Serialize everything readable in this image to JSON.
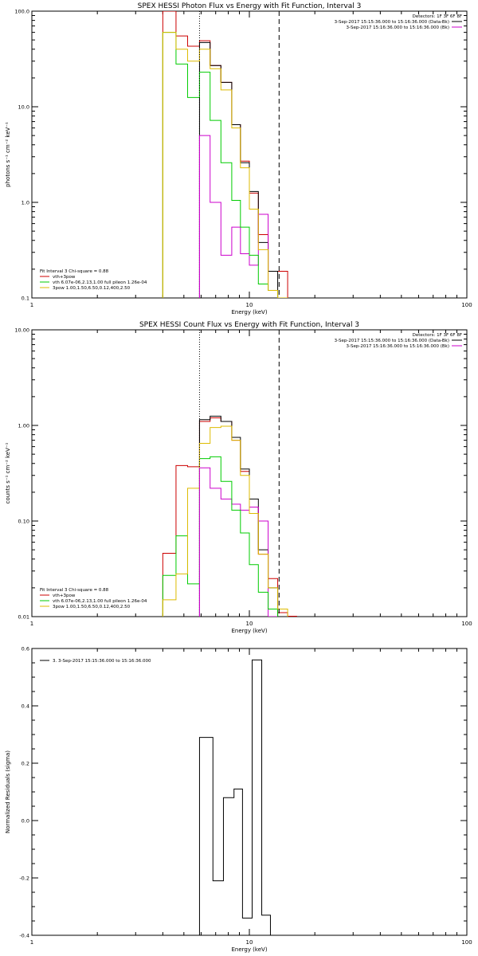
{
  "chart_data": [
    {
      "type": "line",
      "title": "SPEX HESSI Photon Flux vs Energy with Fit Function, Interval 3",
      "xlabel": "Energy (keV)",
      "ylabel": "photons s⁻¹ cm⁻² keV⁻¹",
      "x_scale": "log",
      "y_scale": "log",
      "xlim": [
        1,
        100
      ],
      "ylim": [
        0.1,
        100
      ],
      "x_ticks": [
        {
          "v": 1,
          "label": "1"
        },
        {
          "v": 10,
          "label": "10"
        },
        {
          "v": 100,
          "label": "100"
        }
      ],
      "y_ticks": [
        {
          "v": 0.1,
          "label": "0.1"
        },
        {
          "v": 1,
          "label": "1.0"
        },
        {
          "v": 10,
          "label": "10.0"
        },
        {
          "v": 100,
          "label": "100.0"
        }
      ],
      "vlines": [
        {
          "x": 5.9,
          "style": "dotted",
          "color": "#000000"
        },
        {
          "x": 13.7,
          "style": "dashed",
          "color": "#000000"
        }
      ],
      "legend_top": [
        "Detectors: 1F 3F 6F 8F",
        "3-Sep-2017 15:15:36.000 to 15:16:36.000 (Data-Bk)",
        "3-Sep-2017 15:16:36.000 to 15:16:36.000 (Bk)"
      ],
      "legend_top_colors": [
        "",
        "#000000",
        "#cc00cc"
      ],
      "legend_bottom_header": "Fit Interval 3   Chi-square = 0.88",
      "legend_bottom": [
        {
          "label": "vth+3pow",
          "color": "#cc0000"
        },
        {
          "label": "vth 6.07e-06,2.13,1.00  full pileon 1.26e-04",
          "color": "#00cc00"
        },
        {
          "label": "3pow 1.00,1.50,6.50,0.12,400,2.50",
          "color": "#ddbb00"
        }
      ],
      "edges": [
        4.0,
        4.5,
        5.0,
        5.5,
        6.0,
        6.5,
        7.0,
        7.5,
        8.0,
        8.5,
        9.0,
        9.5,
        10.0,
        10.5,
        11.0,
        11.5,
        12.0,
        12.5,
        13.0,
        13.5,
        14.0,
        14.5,
        15.0
      ],
      "series": [
        {
          "name": "Data-Bk",
          "color": "#000000",
          "values": [
            null,
            null,
            null,
            null,
            null,
            null,
            null,
            null,
            null,
            null,
            null,
            null,
            null,
            null,
            null,
            null,
            null,
            null,
            null,
            null,
            null,
            null
          ]
        },
        {
          "name": "Bk",
          "color": "#cc00cc",
          "values": [
            null,
            null,
            null,
            null,
            null,
            null,
            null,
            null,
            null,
            null,
            null,
            null,
            null,
            null,
            null,
            null,
            null,
            null,
            null,
            null,
            null,
            null
          ]
        },
        {
          "name": "vth+3pow",
          "color": "#cc0000",
          "values": [
            null,
            null,
            null,
            null,
            null,
            null,
            null,
            null,
            null,
            null,
            null,
            null,
            null,
            null,
            null,
            null,
            null,
            null,
            null,
            null,
            null,
            null
          ]
        },
        {
          "name": "vth",
          "color": "#00cc00",
          "values": [
            null,
            null,
            null,
            null,
            null,
            null,
            null,
            null,
            null,
            null,
            null,
            null,
            null,
            null,
            null,
            null,
            null,
            null,
            null,
            null,
            null,
            null
          ]
        },
        {
          "name": "3pow",
          "color": "#ddbb00",
          "values": [
            null,
            null,
            null,
            null,
            null,
            null,
            null,
            null,
            null,
            null,
            null,
            null,
            null,
            null,
            null,
            null,
            null,
            null,
            null,
            null,
            null,
            null
          ]
        }
      ],
      "steps": [
        {
          "color": "#cc0000",
          "edges": [
            4.0,
            4.6,
            5.2,
            5.9,
            6.6,
            7.4,
            8.3,
            9.1,
            10.0,
            11.0,
            12.2,
            13.5,
            15.0
          ],
          "values": [
            100,
            55,
            43,
            49,
            27,
            18,
            6.5,
            2.7,
            1.25,
            0.46,
            0.19,
            0.19
          ]
        },
        {
          "color": "#000000",
          "edges": [
            5.9,
            6.6,
            7.4,
            8.3,
            9.1,
            10.0,
            11.0,
            12.2,
            13.5
          ],
          "values": [
            47,
            27,
            18,
            6.5,
            2.6,
            1.3,
            0.38,
            0.19
          ]
        },
        {
          "color": "#cc00cc",
          "edges": [
            5.9,
            6.6,
            7.4,
            8.3,
            9.1,
            10.0,
            11.0,
            12.2,
            13.5
          ],
          "values": [
            5.0,
            1.0,
            0.28,
            0.55,
            0.29,
            0.22,
            0.75,
            0.12
          ]
        },
        {
          "color": "#00cc00",
          "edges": [
            4.0,
            4.6,
            5.2,
            5.9,
            6.6,
            7.4,
            8.3,
            9.1,
            10.0,
            11.0,
            12.2,
            13.5
          ],
          "values": [
            60,
            28,
            12.5,
            23,
            7.2,
            2.6,
            1.05,
            0.55,
            0.28,
            0.14,
            0.12
          ]
        },
        {
          "color": "#ddbb00",
          "edges": [
            4.0,
            4.6,
            5.2,
            5.9,
            6.6,
            7.4,
            8.3,
            9.1,
            10.0,
            11.0,
            12.2,
            13.5,
            15.0
          ],
          "values": [
            60,
            40,
            30,
            40,
            25,
            15,
            6.0,
            2.3,
            0.85,
            0.32,
            0.12,
            0.1
          ]
        }
      ],
      "vline_colored": {
        "x": 5.9,
        "color": "#cc00cc"
      }
    },
    {
      "type": "line",
      "title": "SPEX HESSI Count Flux vs Energy with Fit Function, Interval 3",
      "xlabel": "Energy (keV)",
      "ylabel": "counts s⁻¹ cm⁻² keV⁻¹",
      "x_scale": "log",
      "y_scale": "log",
      "xlim": [
        1,
        100
      ],
      "ylim": [
        0.01,
        10
      ],
      "x_ticks": [
        {
          "v": 1,
          "label": "1"
        },
        {
          "v": 10,
          "label": "10"
        },
        {
          "v": 100,
          "label": "100"
        }
      ],
      "y_ticks": [
        {
          "v": 0.01,
          "label": "0.01"
        },
        {
          "v": 0.1,
          "label": "0.10"
        },
        {
          "v": 1,
          "label": "1.00"
        },
        {
          "v": 10,
          "label": "10.00"
        }
      ],
      "vlines": [
        {
          "x": 5.9,
          "style": "dotted",
          "color": "#000000"
        },
        {
          "x": 13.7,
          "style": "dashed",
          "color": "#000000"
        }
      ],
      "legend_top": [
        "Detectors: 1F 3F 6F 8F",
        "3-Sep-2017 15:15:36.000 to 15:16:36.000 (Data-Bk)",
        "3-Sep-2017 15:16:36.000 to 15:16:36.000 (Bk)"
      ],
      "legend_top_colors": [
        "",
        "#000000",
        "#cc00cc"
      ],
      "legend_bottom_header": "Fit Interval 3   Chi-square = 0.88",
      "legend_bottom": [
        {
          "label": "vth+3pow",
          "color": "#cc0000"
        },
        {
          "label": "vth 6.07e-06,2.13,1.00  full pileon 1.26e-04",
          "color": "#00cc00"
        },
        {
          "label": "3pow 1.00,1.50,6.50,0.12,400,2.50",
          "color": "#ddbb00"
        }
      ],
      "steps": [
        {
          "color": "#cc0000",
          "edges": [
            4.0,
            4.6,
            5.2,
            5.9,
            6.6,
            7.4,
            8.3,
            9.1,
            10.0,
            11.0,
            12.2,
            13.5,
            15.0,
            16.5
          ],
          "values": [
            0.046,
            0.38,
            0.37,
            1.1,
            1.2,
            1.1,
            0.7,
            0.33,
            0.14,
            0.045,
            0.025,
            0.011,
            0.0101
          ]
        },
        {
          "color": "#000000",
          "edges": [
            5.9,
            6.6,
            7.4,
            8.3,
            9.1,
            10.0,
            11.0,
            12.2,
            13.5
          ],
          "values": [
            1.15,
            1.25,
            1.1,
            0.75,
            0.35,
            0.17,
            0.05,
            0.02
          ]
        },
        {
          "color": "#cc00cc",
          "edges": [
            5.9,
            6.6,
            7.4,
            8.3,
            9.1,
            10.0,
            11.0,
            12.2,
            13.5
          ],
          "values": [
            0.36,
            0.22,
            0.17,
            0.15,
            0.13,
            0.14,
            0.1,
            0.01
          ]
        },
        {
          "color": "#00cc00",
          "edges": [
            4.0,
            4.6,
            5.2,
            5.9,
            6.6,
            7.4,
            8.3,
            9.1,
            10.0,
            11.0,
            12.2,
            13.5
          ],
          "values": [
            0.027,
            0.07,
            0.022,
            0.45,
            0.47,
            0.26,
            0.13,
            0.075,
            0.035,
            0.018,
            0.012
          ]
        },
        {
          "color": "#ddbb00",
          "edges": [
            4.0,
            4.6,
            5.2,
            5.9,
            6.6,
            7.4,
            8.3,
            9.1,
            10.0,
            11.0,
            12.2,
            13.5,
            15.0
          ],
          "values": [
            0.015,
            0.028,
            0.22,
            0.65,
            0.95,
            0.98,
            0.7,
            0.3,
            0.12,
            0.045,
            0.02,
            0.012
          ]
        }
      ],
      "vline_colored": {
        "x": 5.9,
        "color": "#cc00cc"
      }
    },
    {
      "type": "line",
      "title": "",
      "xlabel": "Energy (keV)",
      "ylabel": "Normalized Residuals (sigma)",
      "x_scale": "log",
      "y_scale": "linear",
      "xlim": [
        1,
        100
      ],
      "ylim": [
        -0.4,
        0.6
      ],
      "x_ticks": [
        {
          "v": 1,
          "label": "1"
        },
        {
          "v": 10,
          "label": "10"
        },
        {
          "v": 100,
          "label": "100"
        }
      ],
      "y_ticks": [
        {
          "v": -0.4,
          "label": "-0.4"
        },
        {
          "v": -0.2,
          "label": "-0.2"
        },
        {
          "v": 0.0,
          "label": "0.0"
        },
        {
          "v": 0.2,
          "label": "0.2"
        },
        {
          "v": 0.4,
          "label": "0.4"
        },
        {
          "v": 0.6,
          "label": "0.6"
        }
      ],
      "legend_top_left": "3.  3-Sep-2017 15:15:36.000 to 15:16:36.000",
      "steps": [
        {
          "color": "#000000",
          "edges": [
            5.9,
            6.8,
            7.6,
            8.5,
            9.3,
            10.3,
            11.4,
            12.5,
            13.5
          ],
          "values": [
            0.29,
            -0.21,
            0.08,
            0.11,
            -0.34,
            0.56,
            -0.33,
            -0.4
          ]
        }
      ]
    }
  ]
}
